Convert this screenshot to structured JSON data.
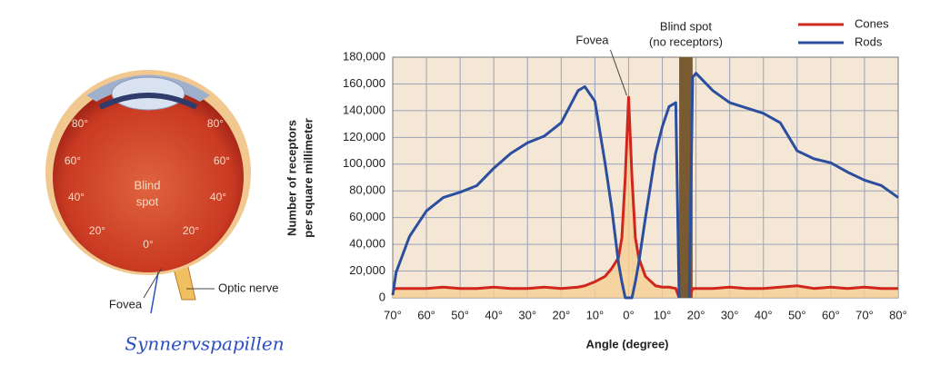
{
  "chart_data": {
    "type": "line",
    "x_label": "Angle (degree)",
    "y_label": [
      "Number of receptors",
      "per square millimeter"
    ],
    "x": [
      -70,
      -69,
      -65,
      -60,
      -55,
      -50,
      -45,
      -40,
      -35,
      -30,
      -25,
      -20,
      -15,
      -13,
      -10,
      -7,
      -5,
      -3,
      -2,
      -1,
      0,
      1,
      2,
      3,
      5,
      8,
      10,
      12,
      14,
      15,
      16,
      17,
      18,
      19,
      20,
      25,
      30,
      35,
      40,
      45,
      50,
      55,
      60,
      65,
      70,
      75,
      80
    ],
    "series": [
      {
        "name": "Cones",
        "color": "#d0261e",
        "values": [
          6000,
          7000,
          7000,
          7000,
          8000,
          7000,
          7000,
          8000,
          7000,
          7000,
          8000,
          7000,
          8000,
          9000,
          12000,
          16000,
          22000,
          30000,
          45000,
          90000,
          150000,
          90000,
          45000,
          30000,
          16000,
          9000,
          8000,
          8000,
          7000,
          0,
          null,
          null,
          0,
          7000,
          7000,
          7000,
          8000,
          7000,
          7000,
          8000,
          9000,
          7000,
          8000,
          7000,
          8000,
          7000,
          7000
        ]
      },
      {
        "name": "Rods",
        "color": "#2b4f9e",
        "values": [
          2000,
          19000,
          46000,
          65000,
          75000,
          79000,
          84000,
          97000,
          108000,
          116000,
          121000,
          131000,
          155000,
          158000,
          147000,
          101000,
          67000,
          26000,
          12000,
          0,
          0,
          0,
          12000,
          26000,
          60000,
          108000,
          128000,
          143000,
          146000,
          0,
          null,
          null,
          0,
          165000,
          168000,
          155000,
          146000,
          142000,
          138000,
          131000,
          110000,
          104000,
          101000,
          94000,
          88000,
          84000,
          75000
        ]
      }
    ],
    "xlim": [
      -70,
      80
    ],
    "xticks": [
      {
        "value": -70,
        "label": "70°"
      },
      {
        "value": -60,
        "label": "60°"
      },
      {
        "value": -50,
        "label": "50°"
      },
      {
        "value": -40,
        "label": "40°"
      },
      {
        "value": -30,
        "label": "30°"
      },
      {
        "value": -20,
        "label": "20°"
      },
      {
        "value": -10,
        "label": "10°"
      },
      {
        "value": 0,
        "label": "0°"
      },
      {
        "value": 10,
        "label": "10°"
      },
      {
        "value": 20,
        "label": "20°"
      },
      {
        "value": 30,
        "label": "30°"
      },
      {
        "value": 40,
        "label": "40°"
      },
      {
        "value": 50,
        "label": "50°"
      },
      {
        "value": 60,
        "label": "60°"
      },
      {
        "value": 70,
        "label": "70°"
      },
      {
        "value": 80,
        "label": "80°"
      }
    ],
    "ylim": [
      0,
      180000
    ],
    "yticks": [
      0,
      {
        "value": 20000,
        "label": "20,000"
      },
      {
        "value": 40000,
        "label": "40,000"
      },
      {
        "value": 60000,
        "label": "60,000"
      },
      {
        "value": 80000,
        "label": "80,000"
      },
      {
        "value": 100000,
        "label": "100,000"
      },
      {
        "value": 120000,
        "label": "120,000"
      },
      {
        "value": 140000,
        "label": "140,000"
      },
      {
        "value": 160000,
        "label": "160,000"
      },
      {
        "value": 180000,
        "label": "180,000"
      }
    ],
    "grid": true,
    "legend": "top-right",
    "blind_spot": {
      "range": [
        15,
        19
      ],
      "label": [
        "Blind spot",
        "(no receptors)"
      ],
      "color": "#7a5a30"
    },
    "fovea_label": "Fovea"
  },
  "illustration": {
    "angle_labels": [
      "80°",
      "80°",
      "60°",
      "60°",
      "40°",
      "40°",
      "20°",
      "20°",
      "0°"
    ],
    "blind_spot": [
      "Blind",
      "spot"
    ],
    "fovea": "Fovea",
    "optic_nerve": "Optic nerve",
    "handwriting": "Synnervspapillen"
  }
}
